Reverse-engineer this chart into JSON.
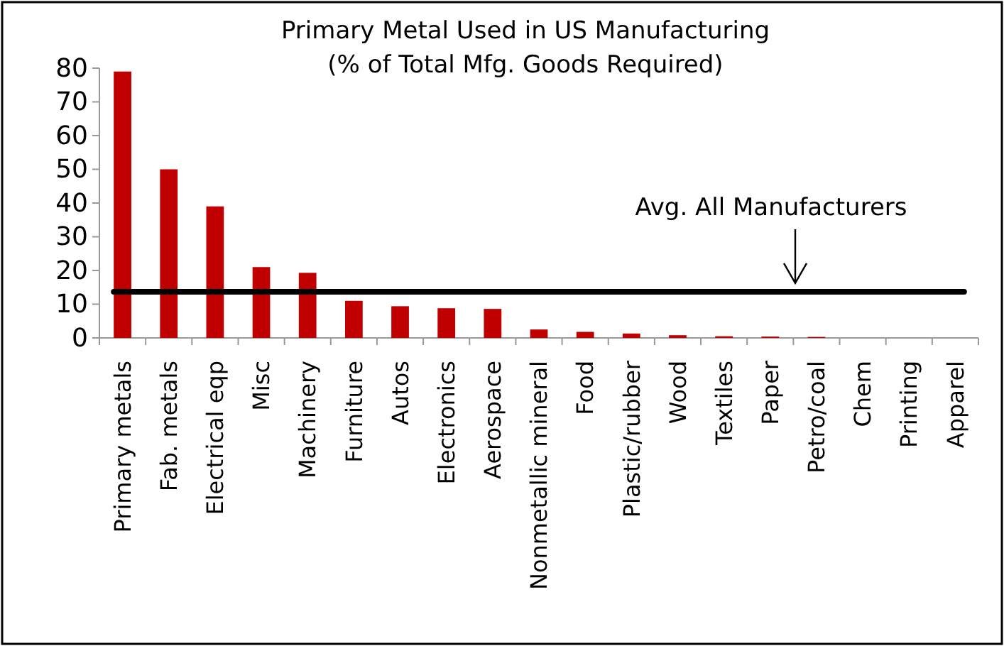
{
  "chart_data": {
    "type": "bar",
    "title": "Primary Metal Used in US Manufacturing",
    "subtitle": "(% of Total Mfg. Goods Required)",
    "categories": [
      "Primary metals",
      "Fab. metals",
      "Electrical eqp",
      "Misc",
      "Machinery",
      "Furniture",
      "Autos",
      "Electronics",
      "Aerospace",
      "Nonmetallic mineral",
      "Food",
      "Plastic/rubber",
      "Wood",
      "Textiles",
      "Paper",
      "Petro/coal",
      "Chem",
      "Printing",
      "Apparel"
    ],
    "values": [
      79,
      50,
      39,
      21,
      19.3,
      11,
      9.4,
      8.8,
      8.6,
      2.5,
      1.8,
      1.3,
      0.8,
      0.5,
      0.4,
      0.3,
      0,
      0,
      0
    ],
    "color": "#c00000",
    "ylim": [
      0,
      80
    ],
    "yticks": [
      0,
      10,
      20,
      30,
      40,
      50,
      60,
      70,
      80
    ],
    "grid": false,
    "ref_lines": [
      {
        "axis": "y",
        "value": 13.7,
        "label": "Avg. All Manufacturers",
        "color": "#000000"
      }
    ]
  }
}
